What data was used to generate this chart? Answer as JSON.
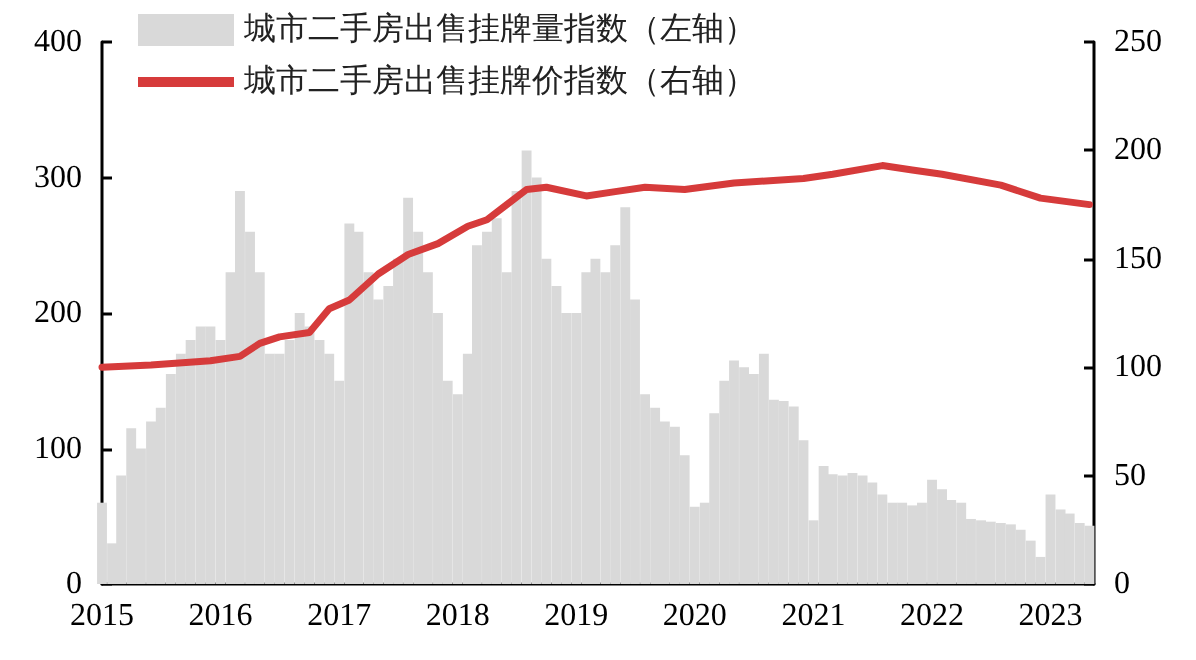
{
  "chart_data": {
    "type": "bar",
    "xlim": [
      "2015-01",
      "2023-05-15"
    ],
    "xticks": [
      "2015",
      "2016",
      "2017",
      "2018",
      "2019",
      "2020",
      "2021",
      "2022",
      "2023"
    ],
    "ylim": [
      0,
      400
    ],
    "yticks": [
      0,
      100,
      200,
      300,
      400
    ],
    "y2lim": [
      0,
      250
    ],
    "y2ticks": [
      0,
      50,
      100,
      150,
      200,
      250
    ],
    "grid": false,
    "legend": "top left",
    "marker": "none",
    "series": [
      {
        "name": "城市二手房出售挂牌量指数（左轴）",
        "color": "#d9d9d9",
        "x": [
          "2015-01",
          "2015-02",
          "2015-03",
          "2015-04",
          "2015-05",
          "2015-06",
          "2015-07",
          "2015-08",
          "2015-09",
          "2015-10",
          "2015-11",
          "2015-12",
          "2016-01",
          "2016-02",
          "2016-03",
          "2016-04",
          "2016-05",
          "2016-06",
          "2016-07",
          "2016-08",
          "2016-09",
          "2016-10",
          "2016-11",
          "2016-12",
          "2017-01",
          "2017-02",
          "2017-03",
          "2017-04",
          "2017-05",
          "2017-06",
          "2017-07",
          "2017-08",
          "2017-09",
          "2017-10",
          "2017-11",
          "2017-12",
          "2018-01",
          "2018-02",
          "2018-03",
          "2018-04",
          "2018-05",
          "2018-06",
          "2018-07",
          "2018-08",
          "2018-09",
          "2018-10",
          "2018-11",
          "2018-12",
          "2019-01",
          "2019-02",
          "2019-03",
          "2019-04",
          "2019-05",
          "2019-06",
          "2019-07",
          "2019-08",
          "2019-09",
          "2019-10",
          "2019-11",
          "2019-12",
          "2020-01",
          "2020-02",
          "2020-03",
          "2020-04",
          "2020-05",
          "2020-06",
          "2020-07",
          "2020-08",
          "2020-09",
          "2020-10",
          "2020-11",
          "2020-12",
          "2021-01",
          "2021-02",
          "2021-03",
          "2021-04",
          "2021-05",
          "2021-06",
          "2021-07",
          "2021-08",
          "2021-09",
          "2021-10",
          "2021-11",
          "2021-12",
          "2022-01",
          "2022-02",
          "2022-03",
          "2022-04",
          "2022-05",
          "2022-06",
          "2022-07",
          "2022-08",
          "2022-09",
          "2022-10",
          "2022-11",
          "2022-12",
          "2023-01",
          "2023-02",
          "2023-03",
          "2023-04",
          "2023-05"
        ],
        "values": [
          60,
          30,
          80,
          115,
          100,
          120,
          130,
          155,
          170,
          180,
          190,
          190,
          180,
          230,
          290,
          260,
          230,
          170,
          170,
          180,
          200,
          190,
          180,
          170,
          150,
          266,
          260,
          230,
          210,
          220,
          240,
          285,
          260,
          230,
          200,
          150,
          140,
          170,
          250,
          260,
          270,
          230,
          290,
          320,
          300,
          240,
          220,
          200,
          200,
          230,
          240,
          230,
          250,
          278,
          210,
          140,
          130,
          120,
          116,
          95,
          57,
          60,
          126,
          150,
          165,
          160,
          155,
          170,
          136,
          135,
          131,
          106,
          47,
          87,
          81,
          80,
          82,
          80,
          75,
          66,
          60,
          60,
          58,
          60,
          77,
          70,
          62,
          60,
          48,
          47,
          46,
          45,
          44,
          40,
          32,
          20,
          66,
          55,
          52,
          45,
          43
        ]
      },
      {
        "name": "城市二手房出售挂牌价指数（右轴）",
        "type": "line",
        "axis": "y2",
        "color": "#d63b3b",
        "line_style": "solid",
        "x": [
          "2015-01",
          "2015-06",
          "2015-12",
          "2016-03",
          "2016-05",
          "2016-07",
          "2016-10",
          "2016-12",
          "2017-02",
          "2017-05",
          "2017-08",
          "2017-11",
          "2018-02",
          "2018-04",
          "2018-06",
          "2018-08",
          "2018-10",
          "2019-02",
          "2019-05",
          "2019-08",
          "2019-12",
          "2020-05",
          "2020-12",
          "2021-03",
          "2021-08",
          "2021-11",
          "2022-02",
          "2022-08",
          "2022-12",
          "2023-05"
        ],
        "values": [
          100,
          101,
          103,
          105,
          111,
          114,
          116,
          127,
          131,
          143,
          152,
          157,
          165,
          168,
          175,
          182,
          183,
          179,
          181,
          183,
          182,
          185,
          187,
          189,
          193,
          191,
          189,
          184,
          178,
          175
        ]
      }
    ]
  }
}
